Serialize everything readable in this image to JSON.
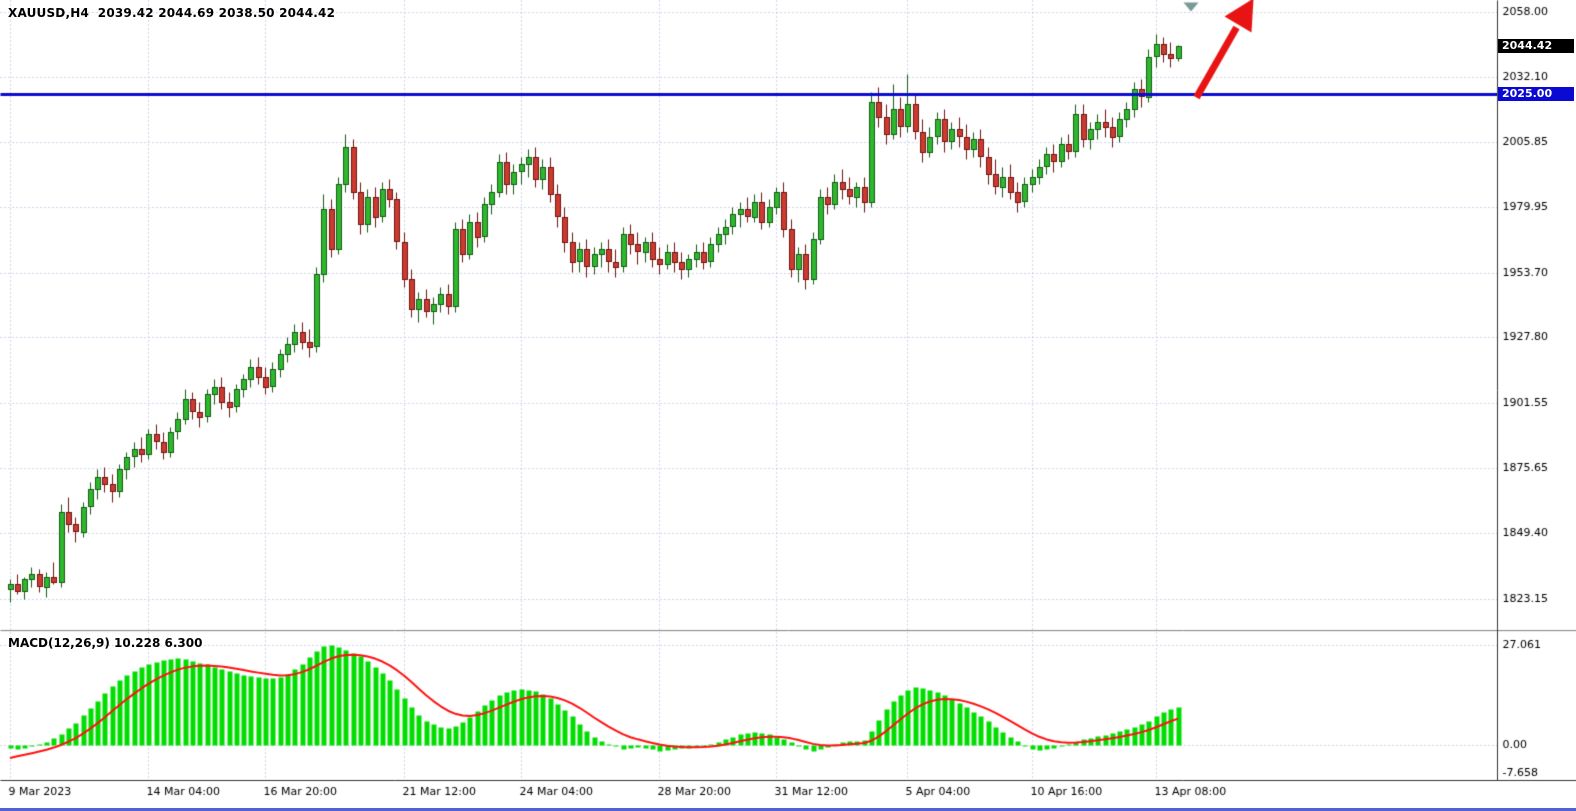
{
  "header": {
    "line": "XAUUSD,H4  2039.42 2044.69 2038.50 2044.42"
  },
  "macd": {
    "label": "MACD(12,26,9) 10.228 6.300"
  },
  "price_axis": {
    "current_tag": "2044.42",
    "hline_tag": "2025.00"
  },
  "chart_data": [
    {
      "type": "candlestick",
      "symbol": "XAUUSD",
      "timeframe": "H4",
      "ohlc_display": {
        "open": 2039.42,
        "high": 2044.69,
        "low": 2038.5,
        "close": 2044.42
      },
      "y_ticks": [
        2058.0,
        2032.1,
        2005.85,
        1979.95,
        1953.7,
        1927.8,
        1901.55,
        1875.65,
        1849.4,
        1823.15
      ],
      "x_tick_indices": [
        0,
        19,
        35,
        54,
        70,
        89,
        105,
        123,
        140,
        157
      ],
      "x_tick_labels": [
        "9 Mar 2023",
        "14 Mar 04:00",
        "16 Mar 20:00",
        "21 Mar 12:00",
        "24 Mar 04:00",
        "28 Mar 20:00",
        "31 Mar 12:00",
        "5 Apr 04:00",
        "10 Apr 16:00",
        "13 Apr 08:00"
      ],
      "hline": {
        "price": 2025.0,
        "color": "#0a0ad2",
        "label": "2025.00"
      },
      "current_price": {
        "value": 2044.42,
        "label": "2044.42"
      },
      "colors": {
        "up_fill": "#2eb82e",
        "up_edge": "#145c14",
        "down_fill": "#cc3a30",
        "down_edge": "#6e1511",
        "grid": "#a4aed8"
      },
      "annotations": [
        {
          "type": "trend-arrow",
          "direction": "up-right",
          "color": "#e81414"
        },
        {
          "type": "chart-shift-marker",
          "color": "#7a9a9a"
        }
      ],
      "candles": [
        [
          1827,
          1831,
          1822,
          1829
        ],
        [
          1829,
          1833,
          1825,
          1826
        ],
        [
          1826,
          1832,
          1823,
          1831
        ],
        [
          1831,
          1836,
          1828,
          1833
        ],
        [
          1833,
          1835,
          1826,
          1828
        ],
        [
          1828,
          1834,
          1824,
          1832
        ],
        [
          1832,
          1838,
          1829,
          1830
        ],
        [
          1830,
          1861,
          1828,
          1858
        ],
        [
          1858,
          1864,
          1850,
          1853
        ],
        [
          1853,
          1856,
          1846,
          1850
        ],
        [
          1850,
          1862,
          1848,
          1860
        ],
        [
          1860,
          1870,
          1857,
          1867
        ],
        [
          1867,
          1875,
          1863,
          1872
        ],
        [
          1872,
          1876,
          1866,
          1869
        ],
        [
          1869,
          1873,
          1862,
          1866
        ],
        [
          1866,
          1877,
          1864,
          1875
        ],
        [
          1875,
          1882,
          1871,
          1880
        ],
        [
          1880,
          1886,
          1876,
          1883
        ],
        [
          1883,
          1888,
          1878,
          1881
        ],
        [
          1881,
          1891,
          1879,
          1889
        ],
        [
          1889,
          1893,
          1883,
          1886
        ],
        [
          1886,
          1890,
          1879,
          1882
        ],
        [
          1882,
          1892,
          1880,
          1890
        ],
        [
          1890,
          1898,
          1887,
          1895
        ],
        [
          1895,
          1907,
          1893,
          1903
        ],
        [
          1903,
          1906,
          1895,
          1898
        ],
        [
          1898,
          1902,
          1892,
          1896
        ],
        [
          1896,
          1907,
          1894,
          1905
        ],
        [
          1905,
          1911,
          1901,
          1908
        ],
        [
          1908,
          1912,
          1899,
          1902
        ],
        [
          1902,
          1906,
          1896,
          1900
        ],
        [
          1900,
          1909,
          1898,
          1907
        ],
        [
          1907,
          1913,
          1904,
          1911
        ],
        [
          1911,
          1919,
          1908,
          1916
        ],
        [
          1916,
          1920,
          1909,
          1912
        ],
        [
          1912,
          1916,
          1905,
          1908
        ],
        [
          1908,
          1918,
          1906,
          1915
        ],
        [
          1915,
          1923,
          1912,
          1921
        ],
        [
          1921,
          1928,
          1918,
          1925
        ],
        [
          1925,
          1933,
          1922,
          1930
        ],
        [
          1930,
          1934,
          1923,
          1926
        ],
        [
          1926,
          1931,
          1920,
          1924
        ],
        [
          1924,
          1956,
          1922,
          1953
        ],
        [
          1953,
          1985,
          1950,
          1979
        ],
        [
          1979,
          1983,
          1960,
          1963
        ],
        [
          1963,
          1992,
          1961,
          1989
        ],
        [
          1989,
          2009,
          1986,
          2004
        ],
        [
          2004,
          2007,
          1983,
          1986
        ],
        [
          1986,
          1990,
          1969,
          1973
        ],
        [
          1973,
          1987,
          1970,
          1984
        ],
        [
          1984,
          1988,
          1972,
          1976
        ],
        [
          1976,
          1990,
          1974,
          1987
        ],
        [
          1987,
          1991,
          1980,
          1983
        ],
        [
          1983,
          1986,
          1963,
          1966
        ],
        [
          1966,
          1970,
          1948,
          1951
        ],
        [
          1951,
          1955,
          1936,
          1939
        ],
        [
          1939,
          1946,
          1934,
          1943
        ],
        [
          1943,
          1947,
          1936,
          1938
        ],
        [
          1938,
          1944,
          1933,
          1941
        ],
        [
          1941,
          1948,
          1938,
          1945
        ],
        [
          1945,
          1949,
          1937,
          1940
        ],
        [
          1940,
          1974,
          1938,
          1971
        ],
        [
          1971,
          1975,
          1958,
          1961
        ],
        [
          1961,
          1977,
          1959,
          1974
        ],
        [
          1974,
          1978,
          1964,
          1968
        ],
        [
          1968,
          1984,
          1966,
          1981
        ],
        [
          1981,
          1989,
          1977,
          1986
        ],
        [
          1986,
          2001,
          1984,
          1998
        ],
        [
          1998,
          2002,
          1985,
          1989
        ],
        [
          1989,
          1997,
          1985,
          1994
        ],
        [
          1994,
          2000,
          1989,
          1997
        ],
        [
          1997,
          2003,
          1992,
          2000
        ],
        [
          2000,
          2004,
          1988,
          1991
        ],
        [
          1991,
          1999,
          1987,
          1996
        ],
        [
          1996,
          2000,
          1982,
          1985
        ],
        [
          1985,
          1989,
          1972,
          1976
        ],
        [
          1976,
          1980,
          1962,
          1966
        ],
        [
          1966,
          1970,
          1954,
          1958
        ],
        [
          1958,
          1966,
          1954,
          1963
        ],
        [
          1963,
          1967,
          1952,
          1956
        ],
        [
          1956,
          1964,
          1953,
          1961
        ],
        [
          1961,
          1966,
          1956,
          1963
        ],
        [
          1963,
          1967,
          1954,
          1958
        ],
        [
          1958,
          1963,
          1952,
          1956
        ],
        [
          1956,
          1972,
          1954,
          1969
        ],
        [
          1969,
          1973,
          1961,
          1965
        ],
        [
          1965,
          1970,
          1957,
          1962
        ],
        [
          1962,
          1968,
          1958,
          1966
        ],
        [
          1966,
          1970,
          1956,
          1959
        ],
        [
          1959,
          1964,
          1953,
          1957
        ],
        [
          1957,
          1965,
          1955,
          1962
        ],
        [
          1962,
          1966,
          1954,
          1958
        ],
        [
          1958,
          1962,
          1951,
          1955
        ],
        [
          1955,
          1961,
          1952,
          1959
        ],
        [
          1959,
          1965,
          1956,
          1962
        ],
        [
          1962,
          1966,
          1955,
          1958
        ],
        [
          1958,
          1968,
          1956,
          1965
        ],
        [
          1965,
          1972,
          1962,
          1969
        ],
        [
          1969,
          1975,
          1965,
          1972
        ],
        [
          1972,
          1980,
          1969,
          1977
        ],
        [
          1977,
          1982,
          1972,
          1979
        ],
        [
          1979,
          1984,
          1974,
          1976
        ],
        [
          1976,
          1985,
          1974,
          1982
        ],
        [
          1982,
          1986,
          1971,
          1974
        ],
        [
          1974,
          1983,
          1972,
          1980
        ],
        [
          1980,
          1988,
          1977,
          1986
        ],
        [
          1986,
          1990,
          1968,
          1971
        ],
        [
          1971,
          1975,
          1952,
          1955
        ],
        [
          1955,
          1964,
          1950,
          1961
        ],
        [
          1961,
          1965,
          1947,
          1951
        ],
        [
          1951,
          1970,
          1949,
          1967
        ],
        [
          1967,
          1987,
          1965,
          1984
        ],
        [
          1984,
          1988,
          1977,
          1981
        ],
        [
          1981,
          1993,
          1979,
          1990
        ],
        [
          1990,
          1995,
          1983,
          1987
        ],
        [
          1987,
          1992,
          1981,
          1984
        ],
        [
          1984,
          1990,
          1980,
          1988
        ],
        [
          1988,
          1992,
          1978,
          1982
        ],
        [
          1982,
          2026,
          1980,
          2022
        ],
        [
          2022,
          2028,
          2012,
          2016
        ],
        [
          2016,
          2021,
          2005,
          2009
        ],
        [
          2009,
          2029,
          2007,
          2019
        ],
        [
          2019,
          2024,
          2008,
          2012
        ],
        [
          2012,
          2033,
          2010,
          2021
        ],
        [
          2021,
          2025,
          2007,
          2010
        ],
        [
          2010,
          2015,
          1998,
          2002
        ],
        [
          2002,
          2012,
          2000,
          2008
        ],
        [
          2008,
          2018,
          2005,
          2015
        ],
        [
          2015,
          2019,
          2002,
          2006
        ],
        [
          2006,
          2014,
          2003,
          2011
        ],
        [
          2011,
          2016,
          2004,
          2008
        ],
        [
          2008,
          2013,
          1999,
          2003
        ],
        [
          2003,
          2010,
          2000,
          2007
        ],
        [
          2007,
          2011,
          1996,
          2000
        ],
        [
          2000,
          2004,
          1989,
          1993
        ],
        [
          1993,
          1999,
          1985,
          1988
        ],
        [
          1988,
          1996,
          1984,
          1992
        ],
        [
          1992,
          1997,
          1983,
          1986
        ],
        [
          1986,
          1990,
          1978,
          1982
        ],
        [
          1982,
          1992,
          1980,
          1989
        ],
        [
          1989,
          1995,
          1986,
          1992
        ],
        [
          1992,
          1999,
          1989,
          1996
        ],
        [
          1996,
          2004,
          1993,
          2001
        ],
        [
          2001,
          2005,
          1994,
          1998
        ],
        [
          1998,
          2008,
          1996,
          2005
        ],
        [
          2005,
          2009,
          1999,
          2002
        ],
        [
          2002,
          2021,
          2000,
          2017
        ],
        [
          2017,
          2021,
          2004,
          2007
        ],
        [
          2007,
          2014,
          2003,
          2011
        ],
        [
          2011,
          2017,
          2007,
          2014
        ],
        [
          2014,
          2019,
          2008,
          2012
        ],
        [
          2012,
          2016,
          2004,
          2008
        ],
        [
          2008,
          2018,
          2006,
          2015
        ],
        [
          2015,
          2022,
          2012,
          2019
        ],
        [
          2019,
          2030,
          2016,
          2027
        ],
        [
          2027,
          2031,
          2020,
          2024
        ],
        [
          2024,
          2043,
          2022,
          2040
        ],
        [
          2040,
          2049,
          2036,
          2045
        ],
        [
          2045,
          2048,
          2038,
          2041
        ],
        [
          2041,
          2046,
          2036,
          2039.4
        ],
        [
          2039.42,
          2044.69,
          2038.5,
          2044.42
        ]
      ]
    },
    {
      "type": "bar",
      "name": "MACD(12,26,9)",
      "current_values": [
        10.228,
        6.3
      ],
      "y_ticks": [
        27.061,
        0.0,
        -7.658
      ],
      "y_tick_labels": [
        "27.061",
        "0.00",
        "-7.658"
      ],
      "grid_values": [
        27.061,
        0
      ],
      "histogram_color": "#00dd00",
      "signal_color": "#ff1111",
      "signal_period": 9,
      "signal_start": -4,
      "histogram": [
        -0.8,
        -1.2,
        -0.9,
        -0.4,
        0.2,
        0.8,
        1.8,
        3.0,
        4.5,
        6,
        8,
        10,
        12,
        14,
        16,
        17.5,
        19,
        20,
        21,
        22,
        22.5,
        23,
        23.3,
        23.5,
        23.2,
        22.8,
        22.3,
        21.8,
        21.2,
        20.6,
        20,
        19.5,
        19,
        18.6,
        18.4,
        18.2,
        18,
        18.3,
        19.2,
        20.5,
        22,
        23.8,
        25.5,
        26.8,
        27.06,
        26.6,
        25.8,
        24.8,
        24,
        22.8,
        21.2,
        19.5,
        17.5,
        15.2,
        12.8,
        10.4,
        8.2,
        6.6,
        5.6,
        5,
        4.6,
        5.2,
        6.2,
        7.6,
        9.2,
        10.8,
        12.2,
        13.4,
        14.4,
        15,
        15.2,
        15,
        14.6,
        13.8,
        12.6,
        11.2,
        9.6,
        7.8,
        5.8,
        3.8,
        2.2,
        1.2,
        0.4,
        -0.4,
        -1,
        -0.9,
        -0.6,
        -0.9,
        -1.2,
        -1.5,
        -1.3,
        -1.1,
        -0.9,
        -0.7,
        -0.5,
        -0.2,
        0.2,
        0.9,
        1.6,
        2.3,
        2.9,
        3.3,
        3.5,
        3.3,
        2.9,
        2.3,
        1.7,
        0.8,
        -0.4,
        -1.1,
        -1.6,
        -1.2,
        -0.6,
        0.2,
        0.7,
        1.0,
        1.2,
        1.4,
        3.8,
        6.8,
        9.8,
        12,
        13.6,
        14.8,
        15.6,
        15.4,
        15,
        14.3,
        13.4,
        12.4,
        11.3,
        10.2,
        9,
        7.8,
        6.4,
        5,
        3.5,
        2.2,
        1,
        -0.2,
        -1,
        -1.4,
        -1.2,
        -0.8,
        -0.3,
        0.3,
        0.9,
        1.5,
        2,
        2.4,
        2.8,
        3.2,
        3.7,
        4.2,
        4.8,
        5.6,
        6.6,
        7.8,
        9,
        9.8,
        10.228
      ]
    }
  ]
}
